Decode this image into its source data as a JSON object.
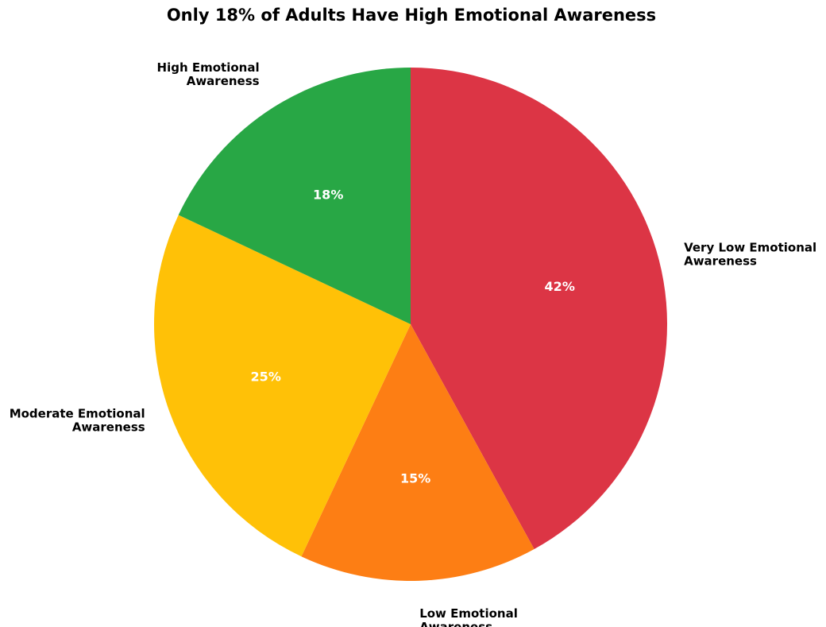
{
  "chart_data": {
    "type": "pie",
    "title": "Only 18% of Adults Have High Emotional Awareness",
    "start_angle": "top, proceeding clockwise",
    "slices": [
      {
        "label": "Very Low Emotional Awareness",
        "label_lines": [
          "Very Low Emotional",
          "Awareness"
        ],
        "value": 42,
        "pct_text": "42%",
        "color": "#DC3545"
      },
      {
        "label": "Low Emotional Awareness",
        "label_lines": [
          "Low Emotional",
          "Awareness"
        ],
        "value": 15,
        "pct_text": "15%",
        "color": "#FD7E14"
      },
      {
        "label": "Moderate Emotional Awareness",
        "label_lines": [
          "Moderate Emotional",
          "Awareness"
        ],
        "value": 25,
        "pct_text": "25%",
        "color": "#FFC107"
      },
      {
        "label": "High Emotional Awareness",
        "label_lines": [
          "High Emotional",
          "Awareness"
        ],
        "value": 18,
        "pct_text": "18%",
        "color": "#28A745"
      }
    ]
  }
}
